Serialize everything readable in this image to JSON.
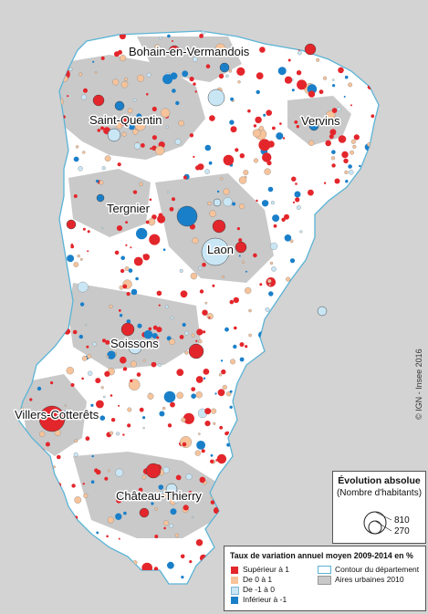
{
  "map": {
    "cities": [
      {
        "name": "Bohain-en-Vermandois"
      },
      {
        "name": "Saint-Quentin"
      },
      {
        "name": "Vervins"
      },
      {
        "name": "Tergnier"
      },
      {
        "name": "Laon"
      },
      {
        "name": "Soissons"
      },
      {
        "name": "Villers-Cotterêts"
      },
      {
        "name": "Château-Thierry"
      }
    ],
    "credit": "© IGN - Insee 2016",
    "colors": {
      "superieur": "#e3262b",
      "de0a1": "#f7c39a",
      "deMoins1a0": "#c9e6f5",
      "inferieur": "#1a7fc9",
      "urban": "#c9c9c9",
      "background": "#d3d3d3",
      "department_fill": "#ffffff",
      "contour": "#5ab4d6"
    }
  },
  "size_legend": {
    "title": "Évolution absolue",
    "subtitle": "(Nombre d'habitants)",
    "values": [
      "810",
      "270"
    ]
  },
  "rate_legend": {
    "title": "Taux de variation annuel moyen 2009-2014 en %",
    "items": [
      {
        "label": "Supérieur à 1",
        "color": "#e3262b"
      },
      {
        "label": "De 0 à 1",
        "color": "#f7c39a"
      },
      {
        "label": "De -1 à 0",
        "color": "#c9e6f5"
      },
      {
        "label": "Inférieur à -1",
        "color": "#1a7fc9"
      }
    ],
    "contour_label": "Contour du département",
    "urban_label": "Aires urbaines 2010"
  }
}
